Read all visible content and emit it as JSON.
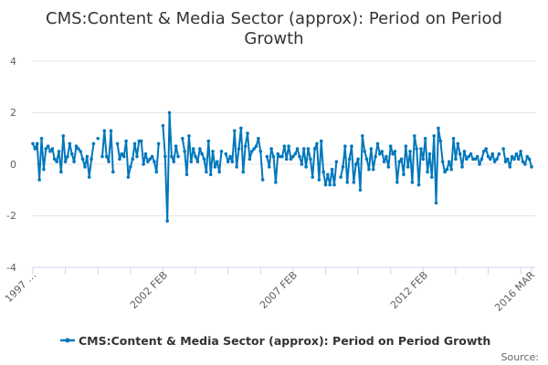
{
  "chart_data": {
    "type": "line",
    "title": "CMS:Content & Media Sector (approx): Period on Period Growth",
    "title_lines": [
      "CMS:Content & Media Sector (approx): Period on Period",
      "Growth"
    ],
    "xlabel": "",
    "ylabel": "",
    "frequency": "monthly",
    "x_tick_labels": [
      "1997 …",
      "2002 FEB",
      "2007 FEB",
      "2012 FEB",
      "2016 MAR"
    ],
    "ylim": [
      -4,
      4
    ],
    "y_ticks": [
      "4",
      "2",
      "0",
      "-2",
      "-4"
    ],
    "grid": true,
    "legend_position": "bottom",
    "series": [
      {
        "name": "CMS:Content & Media Sector (approx): Period on Period Growth",
        "color": "#0077bb",
        "values": [
          0.8,
          0.6,
          0.8,
          -0.6,
          1.0,
          -0.2,
          0.6,
          0.7,
          0.5,
          0.6,
          0.2,
          0.1,
          0.5,
          -0.3,
          1.1,
          0.1,
          0.3,
          0.8,
          0.4,
          0.1,
          0.7,
          0.6,
          0.5,
          0.2,
          -0.1,
          0.3,
          -0.5,
          0.2,
          0.8,
          null,
          1.0,
          null,
          0.3,
          1.3,
          0.3,
          0.1,
          1.3,
          -0.3,
          null,
          0.8,
          0.2,
          0.4,
          0.3,
          0.9,
          -0.5,
          -0.1,
          0.2,
          0.8,
          0.3,
          0.9,
          0.9,
          0.0,
          0.4,
          0.1,
          0.2,
          0.3,
          0.1,
          -0.3,
          0.8,
          null,
          1.5,
          0.3,
          -2.2,
          2.0,
          0.3,
          0.1,
          0.7,
          0.3,
          null,
          1.0,
          0.5,
          -0.4,
          1.1,
          0.1,
          0.6,
          0.3,
          0.1,
          0.6,
          0.4,
          0.2,
          -0.3,
          0.9,
          -0.4,
          0.5,
          -0.1,
          0.1,
          -0.3,
          0.5,
          null,
          0.4,
          0.1,
          0.3,
          0.1,
          1.3,
          -0.1,
          0.6,
          1.4,
          -0.3,
          0.7,
          1.2,
          0.2,
          0.5,
          0.6,
          0.7,
          1.0,
          0.5,
          -0.6,
          null,
          0.3,
          -0.1,
          0.6,
          0.3,
          -0.7,
          0.4,
          0.3,
          0.3,
          0.7,
          0.2,
          0.7,
          0.2,
          0.3,
          0.4,
          0.6,
          0.3,
          0.0,
          0.6,
          -0.1,
          0.6,
          0.2,
          -0.5,
          0.6,
          0.8,
          -0.6,
          0.9,
          -0.3,
          -0.8,
          -0.4,
          -0.8,
          -0.2,
          -0.8,
          0.1,
          null,
          -0.5,
          -0.1,
          0.7,
          -0.7,
          0.2,
          0.7,
          -0.7,
          0.0,
          0.2,
          -1.0,
          1.1,
          0.5,
          0.2,
          -0.2,
          0.6,
          -0.2,
          0.3,
          0.8,
          0.4,
          0.5,
          0.1,
          0.3,
          -0.1,
          0.7,
          0.4,
          0.5,
          -0.7,
          0.1,
          0.2,
          -0.4,
          0.7,
          -0.1,
          0.5,
          -0.7,
          1.1,
          0.6,
          -0.8,
          0.6,
          0.2,
          1.0,
          -0.3,
          0.4,
          -0.5,
          1.1,
          -1.5,
          1.4,
          0.9,
          0.1,
          -0.3,
          -0.2,
          0.1,
          -0.2,
          1.0,
          0.2,
          0.8,
          0.4,
          -0.1,
          0.5,
          0.2,
          0.3,
          0.4,
          0.2,
          0.2,
          0.3,
          0.0,
          0.2,
          0.5,
          0.6,
          0.3,
          0.2,
          0.4,
          0.1,
          0.2,
          0.4,
          null,
          0.6,
          0.1,
          0.2,
          -0.1,
          0.3,
          0.2,
          0.4,
          0.2,
          0.5,
          0.1,
          0.0,
          0.3,
          0.2,
          -0.1
        ]
      }
    ]
  },
  "source_label": "Source:"
}
